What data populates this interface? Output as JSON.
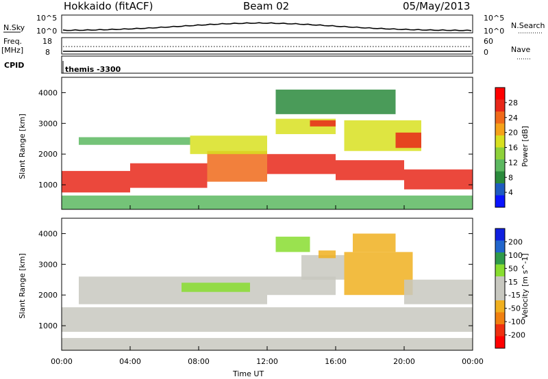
{
  "header": {
    "station": "Hokkaido (fitACF)",
    "beam": "Beam 02",
    "date": "05/May/2013"
  },
  "top_panel": {
    "nsky_label": "N.Sky",
    "nsky_ticks": [
      "10^5",
      "10^0"
    ],
    "nsearch_label": "N.Search",
    "nsearch_ticks": [
      "10^5",
      "10^0"
    ],
    "freq_label": "Freq.",
    "freq_unit": "[MHz]",
    "freq_ticks": [
      "18",
      "8"
    ],
    "nave_label": "Nave",
    "nave_ticks": [
      "60",
      "0"
    ],
    "cpid_label": "CPID",
    "cpid_value": "themis -3300"
  },
  "colors": {
    "power_scale": [
      "#0a14ff",
      "#1f5cc0",
      "#2a8a3c",
      "#5cb860",
      "#8ed13a",
      "#d8e020",
      "#f5a21a",
      "#f06a1a",
      "#e8281a",
      "#ff0000"
    ],
    "velocity_scale": [
      "#ff0000",
      "#ee3010",
      "#f08010",
      "#f0b020",
      "#c8c8c0",
      "#c8c8c0",
      "#88dd30",
      "#2f9a4a",
      "#2266cc",
      "#1020e0"
    ]
  },
  "chart_data": [
    {
      "type": "heatmap",
      "panel": "power",
      "ylabel": "Slant Range [km]",
      "yticks": [
        "1000",
        "2000",
        "3000",
        "4000"
      ],
      "ylim": [
        200,
        4500
      ],
      "xlim": [
        0,
        24
      ],
      "colorbar_label": "Power [dB]",
      "colorbar_ticks": [
        "4",
        "8",
        "12",
        "16",
        "20",
        "24",
        "28"
      ],
      "colorbar_range": [
        0,
        32
      ],
      "bands": [
        {
          "x": [
            0.0,
            4.0
          ],
          "y": [
            750,
            1450
          ],
          "value": 28
        },
        {
          "x": [
            4.0,
            8.5
          ],
          "y": [
            900,
            1700
          ],
          "value": 26
        },
        {
          "x": [
            8.5,
            12.0
          ],
          "y": [
            1100,
            2100
          ],
          "value": 24
        },
        {
          "x": [
            12.0,
            16.0
          ],
          "y": [
            1350,
            2000
          ],
          "value": 27
        },
        {
          "x": [
            16.0,
            20.0
          ],
          "y": [
            1150,
            1800
          ],
          "value": 26
        },
        {
          "x": [
            20.0,
            24.0
          ],
          "y": [
            850,
            1500
          ],
          "value": 28
        },
        {
          "x": [
            1.0,
            7.5
          ],
          "y": [
            2300,
            2550
          ],
          "value": 10
        },
        {
          "x": [
            7.5,
            12.0
          ],
          "y": [
            2000,
            2600
          ],
          "value": 17
        },
        {
          "x": [
            12.5,
            16.0
          ],
          "y": [
            2650,
            3150
          ],
          "value": 16
        },
        {
          "x": [
            14.5,
            16.0
          ],
          "y": [
            2900,
            3100
          ],
          "value": 28
        },
        {
          "x": [
            16.5,
            21.0
          ],
          "y": [
            2100,
            3100
          ],
          "value": 17
        },
        {
          "x": [
            19.5,
            21.0
          ],
          "y": [
            2200,
            2700
          ],
          "value": 28
        },
        {
          "x": [
            12.5,
            19.5
          ],
          "y": [
            3300,
            4100
          ],
          "value": 8
        },
        {
          "x": [
            0.0,
            24.0
          ],
          "y": [
            200,
            650
          ],
          "value": 12
        }
      ]
    },
    {
      "type": "heatmap",
      "panel": "velocity",
      "ylabel": "Slant Range [km]",
      "xlabel": "Time UT",
      "xticks": [
        "00:00",
        "04:00",
        "08:00",
        "12:00",
        "16:00",
        "20:00",
        "00:00"
      ],
      "yticks": [
        "1000",
        "2000",
        "3000",
        "4000"
      ],
      "ylim": [
        200,
        4500
      ],
      "xlim": [
        0,
        24
      ],
      "colorbar_label": "Velocity [m s^-1]",
      "colorbar_ticks": [
        "200",
        "100",
        "50",
        "15",
        "-15",
        "-50",
        "-100",
        "-200"
      ],
      "colorbar_range": [
        -250,
        250
      ],
      "bands": [
        {
          "x": [
            0.0,
            24.0
          ],
          "y": [
            800,
            1600
          ],
          "value": 0
        },
        {
          "x": [
            1.0,
            12.0
          ],
          "y": [
            1700,
            2600
          ],
          "value": 0
        },
        {
          "x": [
            7.0,
            11.0
          ],
          "y": [
            2100,
            2400
          ],
          "value": -60
        },
        {
          "x": [
            12.0,
            16.0
          ],
          "y": [
            2000,
            2600
          ],
          "value": 0
        },
        {
          "x": [
            14.0,
            16.5
          ],
          "y": [
            2500,
            3300
          ],
          "value": 0
        },
        {
          "x": [
            15.0,
            16.0
          ],
          "y": [
            3200,
            3450
          ],
          "value": 60
        },
        {
          "x": [
            16.5,
            20.5
          ],
          "y": [
            2000,
            3400
          ],
          "value": 60
        },
        {
          "x": [
            17.0,
            19.5
          ],
          "y": [
            3400,
            4000
          ],
          "value": 60
        },
        {
          "x": [
            12.5,
            14.5
          ],
          "y": [
            3400,
            3900
          ],
          "value": -60
        },
        {
          "x": [
            20.0,
            24.0
          ],
          "y": [
            1700,
            2500
          ],
          "value": 0
        },
        {
          "x": [
            0.0,
            24.0
          ],
          "y": [
            200,
            600
          ],
          "value": 40
        }
      ]
    }
  ]
}
